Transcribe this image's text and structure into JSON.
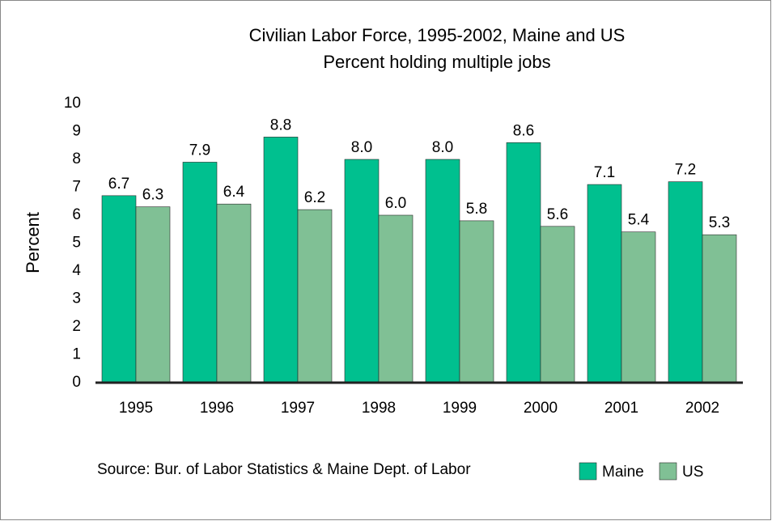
{
  "chart_data": {
    "type": "bar",
    "title": "Civilian Labor Force, 1995-2002, Maine and US",
    "subtitle": "Percent holding multiple jobs",
    "y_label": "Percent",
    "source": "Source: Bur. of Labor Statistics & Maine Dept. of Labor",
    "categories": [
      "1995",
      "1996",
      "1997",
      "1998",
      "1999",
      "2000",
      "2001",
      "2002"
    ],
    "series": [
      {
        "name": "Maine",
        "color": "#00c08f",
        "values": [
          6.7,
          7.9,
          8.8,
          8.0,
          8.0,
          8.6,
          7.1,
          7.2
        ],
        "value_labels": [
          "6.7",
          "7.9",
          "8.8",
          "8.0",
          "8.0",
          "8.6",
          "7.1",
          "7.2"
        ]
      },
      {
        "name": "US",
        "color": "#80c095",
        "values": [
          6.3,
          6.4,
          6.2,
          6.0,
          5.8,
          5.6,
          5.4,
          5.3
        ],
        "value_labels": [
          "6.3",
          "6.4",
          "6.2",
          "6.0",
          "5.8",
          "5.6",
          "5.4",
          "5.3"
        ]
      }
    ],
    "ylim": [
      0,
      10
    ],
    "yticks": [
      0,
      1,
      2,
      3,
      4,
      5,
      6,
      7,
      8,
      9,
      10
    ],
    "grid": false,
    "legend": "bottom-right"
  }
}
